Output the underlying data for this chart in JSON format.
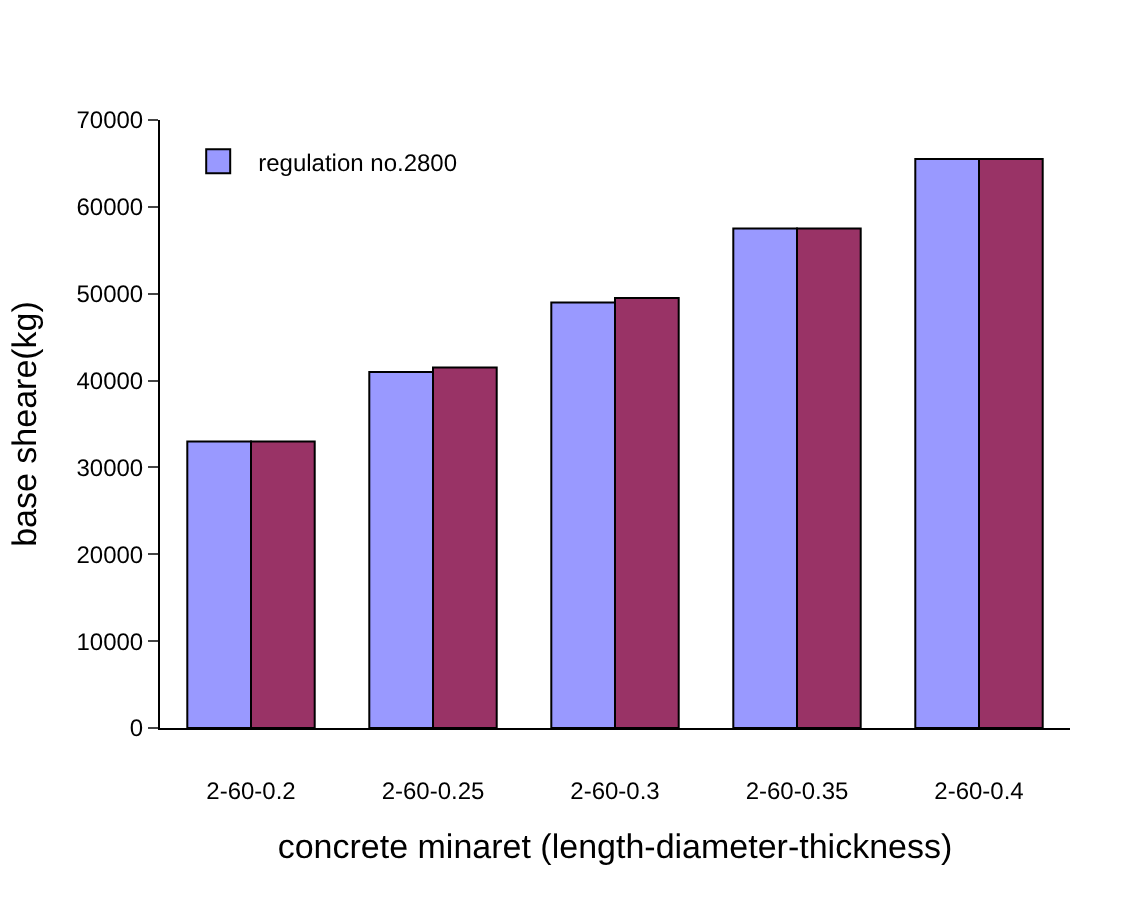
{
  "chart_data": {
    "type": "bar",
    "xlabel": "concrete minaret (length-diameter-thickness)",
    "ylabel": "base sheare(kg)",
    "categories": [
      "2-60-0.2",
      "2-60-0.25",
      "2-60-0.3",
      "2-60-0.35",
      "2-60-0.4"
    ],
    "series": [
      {
        "name": "regulation no.2800",
        "color": "#9999ff",
        "values": [
          33000,
          41000,
          49000,
          57500,
          65500
        ]
      },
      {
        "color": "#993366",
        "values": [
          33000,
          41500,
          49500,
          57500,
          65500
        ]
      }
    ],
    "ylim": [
      0,
      70000
    ],
    "yticks": [
      0,
      10000,
      20000,
      30000,
      40000,
      50000,
      60000,
      70000
    ],
    "grid": false,
    "legend": "top left"
  }
}
